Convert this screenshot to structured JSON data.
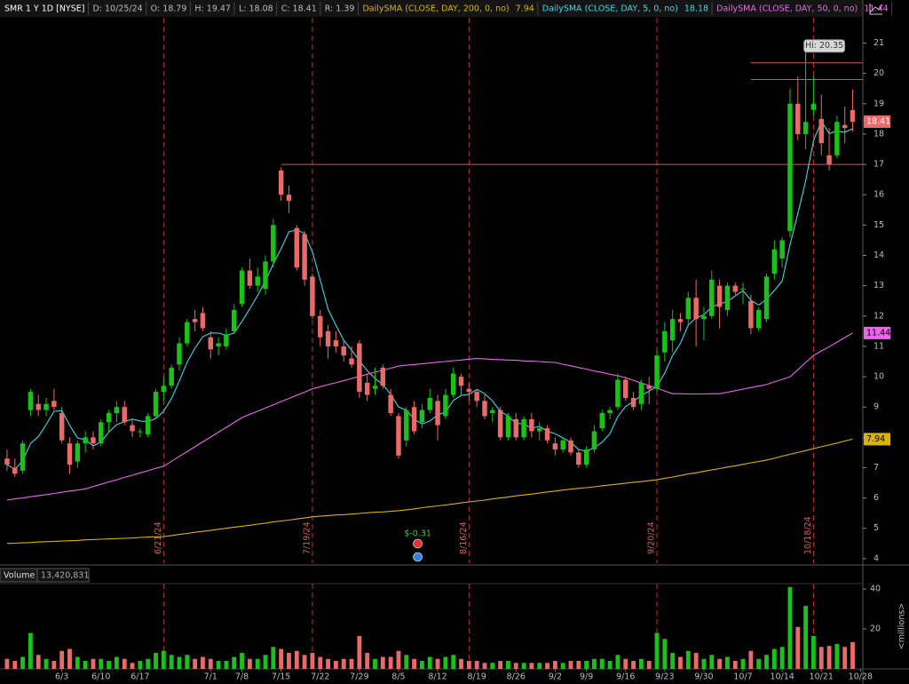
{
  "chart_data": {
    "type": "candlestick",
    "header": [
      "SMR 1 Y 1D [NYSE]",
      "D: 10/25/24",
      "O: 18.79",
      "H: 19.47",
      "L: 18.08",
      "C: 18.41",
      "R: 1.39"
    ],
    "up_color": "#19c219",
    "down_color": "#ea6a6a",
    "xlim": [
      -0.9,
      109.3
    ],
    "xticks": [
      {
        "value": 7,
        "label": "6/3"
      },
      {
        "value": 12,
        "label": "6/10"
      },
      {
        "value": 17,
        "label": "6/17"
      },
      {
        "value": 26,
        "label": "7/1"
      },
      {
        "value": 30,
        "label": "7/8"
      },
      {
        "value": 35,
        "label": "7/15"
      },
      {
        "value": 40,
        "label": "7/22"
      },
      {
        "value": 45,
        "label": "7/29"
      },
      {
        "value": 50,
        "label": "8/5"
      },
      {
        "value": 55,
        "label": "8/12"
      },
      {
        "value": 60,
        "label": "8/19"
      },
      {
        "value": 65,
        "label": "8/26"
      },
      {
        "value": 70,
        "label": "9/2"
      },
      {
        "value": 74,
        "label": "9/9"
      },
      {
        "value": 79,
        "label": "9/16"
      },
      {
        "value": 84,
        "label": "9/23"
      },
      {
        "value": 89,
        "label": "9/30"
      },
      {
        "value": 94,
        "label": "10/7"
      },
      {
        "value": 99,
        "label": "10/14"
      },
      {
        "value": 104,
        "label": "10/21"
      },
      {
        "value": 109,
        "label": "10/28"
      }
    ],
    "ylim": [
      3.85,
      21.25
    ],
    "yticks": [
      4,
      5,
      6,
      7,
      8,
      9,
      10,
      11,
      12,
      13,
      14,
      15,
      16,
      17,
      18,
      19,
      20,
      21
    ],
    "open": [
      7.3,
      7.0,
      6.9,
      8.9,
      9.1,
      8.9,
      9.2,
      8.8,
      7.8,
      7.2,
      7.8,
      8.0,
      7.8,
      8.5,
      8.8,
      9.0,
      8.4,
      8.2,
      8.1,
      8.7,
      9.5,
      9.7,
      10.4,
      11.1,
      11.9,
      12.1,
      11.3,
      11.0,
      11.0,
      11.5,
      12.4,
      13.5,
      13.0,
      12.9,
      13.8,
      16.8,
      16.0,
      14.9,
      14.7,
      13.3,
      12.0,
      11.5,
      11.2,
      11.0,
      10.6,
      11.1,
      9.8,
      9.6,
      10.3,
      9.4,
      8.7,
      7.9,
      9.0,
      8.5,
      8.9,
      9.2,
      8.7,
      9.4,
      10.0,
      9.6,
      9.5,
      9.2,
      8.8,
      8.9,
      8.0,
      8.6,
      8.0,
      8.6,
      8.2,
      8.3,
      7.8,
      7.6,
      7.9,
      7.5,
      7.1,
      7.6,
      8.3,
      8.8,
      9.0,
      9.9,
      9.3,
      9.1,
      9.7,
      9.6,
      10.8,
      11.2,
      11.9,
      11.9,
      12.6,
      11.9,
      12.0,
      13.0,
      12.2,
      13.0,
      12.9,
      12.5,
      11.6,
      11.9,
      13.4,
      13.9,
      14.8,
      19.0,
      18.0,
      18.8,
      18.5,
      17.3,
      17.3,
      18.3,
      18.79
    ],
    "high": [
      7.6,
      7.3,
      7.9,
      9.6,
      9.4,
      9.3,
      9.6,
      9.0,
      8.0,
      7.9,
      8.2,
      8.2,
      8.6,
      8.9,
      9.2,
      9.2,
      8.6,
      8.3,
      8.8,
      9.6,
      10.0,
      10.4,
      11.3,
      11.9,
      12.2,
      12.3,
      11.5,
      11.3,
      11.6,
      12.4,
      13.6,
      13.9,
      13.6,
      14.0,
      15.2,
      16.9,
      16.3,
      15.0,
      14.8,
      13.4,
      12.2,
      11.7,
      11.5,
      11.2,
      11.0,
      11.2,
      10.1,
      10.3,
      10.4,
      9.6,
      8.8,
      9.0,
      9.2,
      9.1,
      9.6,
      9.4,
      9.6,
      10.3,
      10.1,
      9.8,
      9.6,
      9.4,
      9.0,
      9.0,
      8.8,
      8.8,
      8.7,
      8.8,
      8.5,
      8.4,
      8.0,
      8.0,
      8.0,
      7.6,
      7.7,
      8.4,
      8.9,
      9.0,
      10.1,
      10.0,
      9.5,
      9.9,
      10.0,
      10.9,
      11.8,
      12.2,
      12.1,
      12.8,
      13.2,
      12.3,
      13.5,
      13.2,
      13.1,
      13.1,
      13.1,
      12.7,
      12.3,
      13.4,
      14.5,
      14.6,
      19.5,
      19.9,
      20.35,
      19.9,
      19.3,
      18.2,
      18.6,
      18.9,
      19.47
    ],
    "low": [
      6.9,
      6.7,
      6.8,
      8.7,
      8.7,
      8.7,
      8.9,
      7.8,
      6.8,
      7.0,
      7.5,
      7.6,
      7.7,
      8.2,
      8.5,
      8.4,
      8.0,
      8.0,
      8.0,
      8.6,
      9.2,
      9.6,
      10.2,
      11.0,
      11.5,
      11.5,
      10.6,
      10.7,
      10.9,
      11.4,
      12.3,
      12.9,
      12.8,
      12.7,
      13.6,
      15.8,
      15.4,
      13.5,
      13.0,
      11.9,
      11.0,
      10.6,
      10.8,
      10.5,
      10.3,
      9.3,
      9.2,
      9.4,
      9.6,
      8.7,
      7.3,
      7.7,
      8.1,
      8.3,
      8.8,
      7.9,
      8.6,
      9.3,
      9.4,
      9.2,
      9.0,
      8.6,
      8.5,
      7.9,
      7.9,
      7.9,
      7.9,
      8.0,
      7.9,
      7.8,
      7.4,
      7.5,
      7.4,
      7.0,
      7.0,
      7.5,
      8.2,
      8.6,
      8.9,
      9.2,
      8.9,
      8.9,
      9.1,
      9.5,
      10.5,
      10.8,
      11.5,
      11.7,
      11.0,
      11.2,
      11.9,
      11.6,
      12.0,
      12.7,
      12.4,
      11.4,
      11.5,
      11.8,
      13.2,
      13.6,
      14.6,
      17.8,
      17.5,
      18.6,
      17.3,
      16.8,
      17.2,
      17.7,
      18.08
    ],
    "close": [
      7.1,
      6.8,
      7.8,
      9.5,
      8.9,
      9.1,
      9.0,
      7.9,
      7.1,
      7.8,
      8.0,
      7.8,
      8.5,
      8.8,
      9.0,
      8.5,
      8.2,
      8.2,
      8.7,
      9.5,
      9.7,
      10.3,
      11.1,
      11.8,
      11.8,
      11.6,
      10.9,
      11.1,
      11.4,
      12.2,
      13.5,
      13.0,
      13.3,
      13.8,
      15.0,
      16.0,
      15.8,
      13.6,
      13.2,
      12.0,
      11.3,
      11.0,
      11.0,
      10.7,
      10.4,
      9.5,
      9.4,
      9.7,
      9.7,
      8.8,
      7.4,
      8.9,
      8.2,
      8.9,
      9.3,
      8.4,
      9.4,
      10.1,
      9.7,
      9.5,
      9.2,
      8.7,
      8.9,
      8.0,
      8.7,
      8.0,
      8.6,
      8.2,
      8.3,
      7.9,
      7.6,
      7.9,
      7.5,
      7.1,
      7.6,
      8.2,
      8.8,
      8.9,
      9.9,
      9.3,
      9.0,
      9.8,
      9.6,
      10.7,
      11.5,
      11.9,
      11.8,
      12.6,
      11.9,
      12.0,
      13.2,
      12.3,
      13.0,
      12.8,
      12.9,
      11.6,
      12.2,
      13.3,
      14.2,
      14.5,
      19.0,
      18.0,
      18.4,
      19.0,
      17.7,
      17.0,
      18.4,
      18.2,
      18.41
    ],
    "series": [
      {
        "name": "DailySMA (CLOSE, DAY, 200, 0, no)",
        "color": "#d8b400",
        "tag": true,
        "values": [
          4.5,
          4.51,
          4.52,
          4.53,
          4.55,
          4.56,
          4.57,
          4.58,
          4.59,
          4.6,
          4.62,
          4.63,
          4.64,
          4.65,
          4.66,
          4.67,
          4.68,
          4.7,
          4.71,
          4.72,
          4.73,
          4.76,
          4.8,
          4.83,
          4.87,
          4.9,
          4.93,
          4.97,
          5.0,
          5.04,
          5.07,
          5.1,
          5.14,
          5.17,
          5.21,
          5.24,
          5.27,
          5.31,
          5.34,
          5.38,
          5.4,
          5.42,
          5.44,
          5.45,
          5.47,
          5.49,
          5.51,
          5.53,
          5.54,
          5.56,
          5.58,
          5.61,
          5.64,
          5.68,
          5.71,
          5.74,
          5.77,
          5.8,
          5.84,
          5.87,
          5.9,
          5.93,
          5.97,
          6.0,
          6.03,
          6.07,
          6.1,
          6.13,
          6.16,
          6.2,
          6.23,
          6.26,
          6.29,
          6.32,
          6.34,
          6.37,
          6.4,
          6.43,
          6.46,
          6.49,
          6.52,
          6.54,
          6.57,
          6.6,
          6.65,
          6.69,
          6.74,
          6.79,
          6.83,
          6.88,
          6.93,
          6.97,
          7.02,
          7.06,
          7.11,
          7.16,
          7.2,
          7.25,
          7.31,
          7.38,
          7.44,
          7.5,
          7.56,
          7.63,
          7.69,
          7.75,
          7.81,
          7.88,
          7.94
        ]
      },
      {
        "name": "DailySMA (CLOSE, DAY, 5, 0, no)",
        "color": "#3fd6e6",
        "tag": false,
        "values": [
          7.1,
          6.95,
          7.23,
          7.8,
          8.02,
          8.42,
          8.86,
          8.88,
          8.4,
          7.98,
          7.92,
          7.72,
          7.84,
          8.18,
          8.42,
          8.52,
          8.6,
          8.54,
          8.52,
          8.62,
          8.86,
          9.28,
          9.86,
          10.48,
          10.94,
          11.32,
          11.44,
          11.44,
          11.36,
          11.44,
          11.82,
          12.24,
          12.68,
          13.16,
          13.72,
          14.22,
          14.78,
          14.84,
          14.72,
          14.12,
          13.18,
          12.22,
          11.7,
          11.2,
          10.88,
          10.52,
          10.2,
          9.94,
          9.74,
          9.42,
          9.0,
          8.9,
          8.6,
          8.44,
          8.54,
          8.74,
          8.84,
          9.22,
          9.38,
          9.42,
          9.58,
          9.44,
          9.2,
          8.86,
          8.7,
          8.46,
          8.44,
          8.3,
          8.36,
          8.2,
          8.12,
          7.98,
          7.84,
          7.6,
          7.54,
          7.66,
          7.84,
          8.12,
          8.68,
          9.02,
          9.18,
          9.38,
          9.52,
          9.68,
          10.12,
          10.7,
          11.1,
          11.7,
          11.94,
          12.04,
          12.3,
          12.4,
          12.48,
          12.66,
          12.84,
          12.52,
          12.36,
          12.56,
          12.84,
          13.16,
          14.36,
          15.38,
          16.46,
          17.78,
          18.42,
          18.02,
          18.1,
          18.06,
          18.18
        ]
      },
      {
        "name": "DailySMA (CLOSE, DAY, 50, 0, no)",
        "color": "#e868e8",
        "tag": true,
        "values": [
          5.93,
          5.97,
          6.0,
          6.04,
          6.08,
          6.11,
          6.15,
          6.19,
          6.23,
          6.26,
          6.3,
          6.38,
          6.45,
          6.53,
          6.6,
          6.68,
          6.75,
          6.83,
          6.9,
          6.98,
          7.05,
          7.21,
          7.37,
          7.53,
          7.69,
          7.85,
          8.01,
          8.17,
          8.33,
          8.49,
          8.65,
          8.76,
          8.86,
          8.97,
          9.07,
          9.18,
          9.28,
          9.39,
          9.49,
          9.6,
          9.67,
          9.74,
          9.8,
          9.87,
          9.94,
          10.01,
          10.08,
          10.15,
          10.21,
          10.28,
          10.35,
          10.38,
          10.4,
          10.43,
          10.45,
          10.48,
          10.5,
          10.53,
          10.55,
          10.58,
          10.6,
          10.59,
          10.57,
          10.56,
          10.55,
          10.54,
          10.52,
          10.51,
          10.5,
          10.48,
          10.47,
          10.41,
          10.36,
          10.3,
          10.25,
          10.19,
          10.14,
          10.08,
          10.03,
          9.97,
          9.88,
          9.79,
          9.71,
          9.62,
          9.53,
          9.44,
          9.44,
          9.43,
          9.43,
          9.43,
          9.44,
          9.44,
          9.49,
          9.54,
          9.59,
          9.64,
          9.69,
          9.74,
          9.83,
          9.91,
          10.0,
          10.23,
          10.47,
          10.7,
          10.85,
          10.99,
          11.14,
          11.29,
          11.44
        ]
      }
    ],
    "event_lines": [
      {
        "label": "6/21/24",
        "at": 20
      },
      {
        "label": "7/19/24",
        "at": 39
      },
      {
        "label": "8/16/24",
        "at": 59
      },
      {
        "label": "9/20/24",
        "at": 83
      },
      {
        "label": "10/18/24",
        "at": 103
      }
    ],
    "hlines": [
      {
        "value": 17.0,
        "from": 35
      },
      {
        "value": 19.8,
        "from": 95
      },
      {
        "value": 20.35,
        "from": 95
      }
    ],
    "hi": {
      "label": "Hi: 20.35",
      "at": 102
    },
    "earnings": {
      "label": "$-0.31",
      "at": 52
    },
    "volume": {
      "title": "Volume",
      "last_label": "13,420,831",
      "unit_label": "<millions>",
      "ylim": [
        0,
        42.7
      ],
      "yticks": [
        20,
        40
      ],
      "values": [
        5,
        4,
        6,
        18,
        7,
        5,
        4,
        9,
        10,
        6,
        4,
        5,
        5,
        4,
        6,
        5,
        3,
        4,
        5,
        8,
        9,
        7,
        6,
        7,
        5,
        6,
        5,
        4,
        4,
        6,
        8,
        5,
        5,
        7,
        11,
        10,
        8,
        9,
        7,
        8,
        6,
        5,
        4,
        5,
        5,
        16.5,
        8,
        5,
        6,
        6,
        9,
        7,
        5,
        4,
        6,
        5,
        6,
        7,
        5,
        4,
        4,
        3,
        3,
        4,
        4,
        3,
        3,
        3,
        3,
        3,
        4,
        3,
        4,
        4,
        4,
        5,
        5,
        4,
        7,
        5,
        4,
        5,
        4,
        18,
        15,
        8,
        6,
        9,
        8,
        5,
        7,
        5,
        6,
        4,
        5,
        9,
        5,
        7,
        10,
        11,
        41,
        21,
        31.5,
        16.5,
        11,
        11.5,
        12.5,
        11,
        13.420831
      ]
    }
  }
}
